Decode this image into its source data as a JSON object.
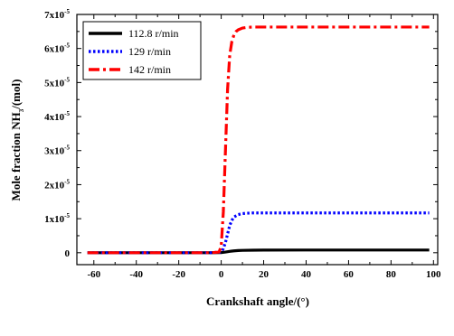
{
  "chart_data": {
    "type": "line",
    "xlabel": "Crankshaft angle/(°)",
    "ylabel": {
      "main": "Mole fraction NH",
      "sub": "3",
      "tail": "/(mol)"
    },
    "xlim": [
      -68,
      102
    ],
    "ylim": [
      -0.35,
      7
    ],
    "y_exponent": "-5",
    "x_ticks": [
      -60,
      -40,
      -20,
      0,
      20,
      40,
      60,
      80,
      100
    ],
    "x_tick_labels": [
      "-60",
      "-40",
      "-20",
      "0",
      "20",
      "40",
      "60",
      "80",
      "100"
    ],
    "y_ticks": [
      0,
      1,
      2,
      3,
      4,
      5,
      6,
      7
    ],
    "y_tick_labels": [
      {
        "mant": "0",
        "exp": ""
      },
      {
        "mant": "1x10",
        "exp": "-5"
      },
      {
        "mant": "2x10",
        "exp": "-5"
      },
      {
        "mant": "3x10",
        "exp": "-5"
      },
      {
        "mant": "4x10",
        "exp": "-5"
      },
      {
        "mant": "5x10",
        "exp": "-5"
      },
      {
        "mant": "6x10",
        "exp": "-5"
      },
      {
        "mant": "7x10",
        "exp": "-5"
      }
    ],
    "legend_position": "top-left",
    "series": [
      {
        "name": "112.8 r/min",
        "color": "#000000",
        "style": "solid",
        "x": [
          -63,
          -20,
          -5,
          0,
          2,
          4,
          6,
          8,
          10,
          15,
          20,
          40,
          60,
          80,
          98
        ],
        "y": [
          0,
          0,
          0,
          0.005,
          0.02,
          0.04,
          0.055,
          0.065,
          0.07,
          0.075,
          0.078,
          0.08,
          0.08,
          0.08,
          0.08
        ]
      },
      {
        "name": "129 r/min",
        "color": "#0000ff",
        "style": "dotted",
        "x": [
          -63,
          -20,
          -5,
          0,
          1,
          2,
          3,
          4,
          5,
          6,
          8,
          10,
          12,
          15,
          20,
          40,
          60,
          80,
          98
        ],
        "y": [
          0,
          0,
          0,
          0.02,
          0.12,
          0.3,
          0.55,
          0.8,
          0.95,
          1.05,
          1.12,
          1.15,
          1.16,
          1.17,
          1.17,
          1.17,
          1.17,
          1.17,
          1.17
        ]
      },
      {
        "name": "142 r/min",
        "color": "#ff0000",
        "style": "dashdot",
        "x": [
          -63,
          -20,
          -5,
          -1,
          0,
          1,
          2,
          3,
          4,
          5,
          6,
          7,
          8,
          10,
          12,
          15,
          20,
          40,
          60,
          80,
          98
        ],
        "y": [
          0,
          0,
          0,
          0.02,
          0.2,
          1.2,
          3.0,
          4.8,
          5.8,
          6.2,
          6.4,
          6.5,
          6.55,
          6.6,
          6.62,
          6.63,
          6.63,
          6.63,
          6.63,
          6.63,
          6.63
        ]
      }
    ]
  }
}
